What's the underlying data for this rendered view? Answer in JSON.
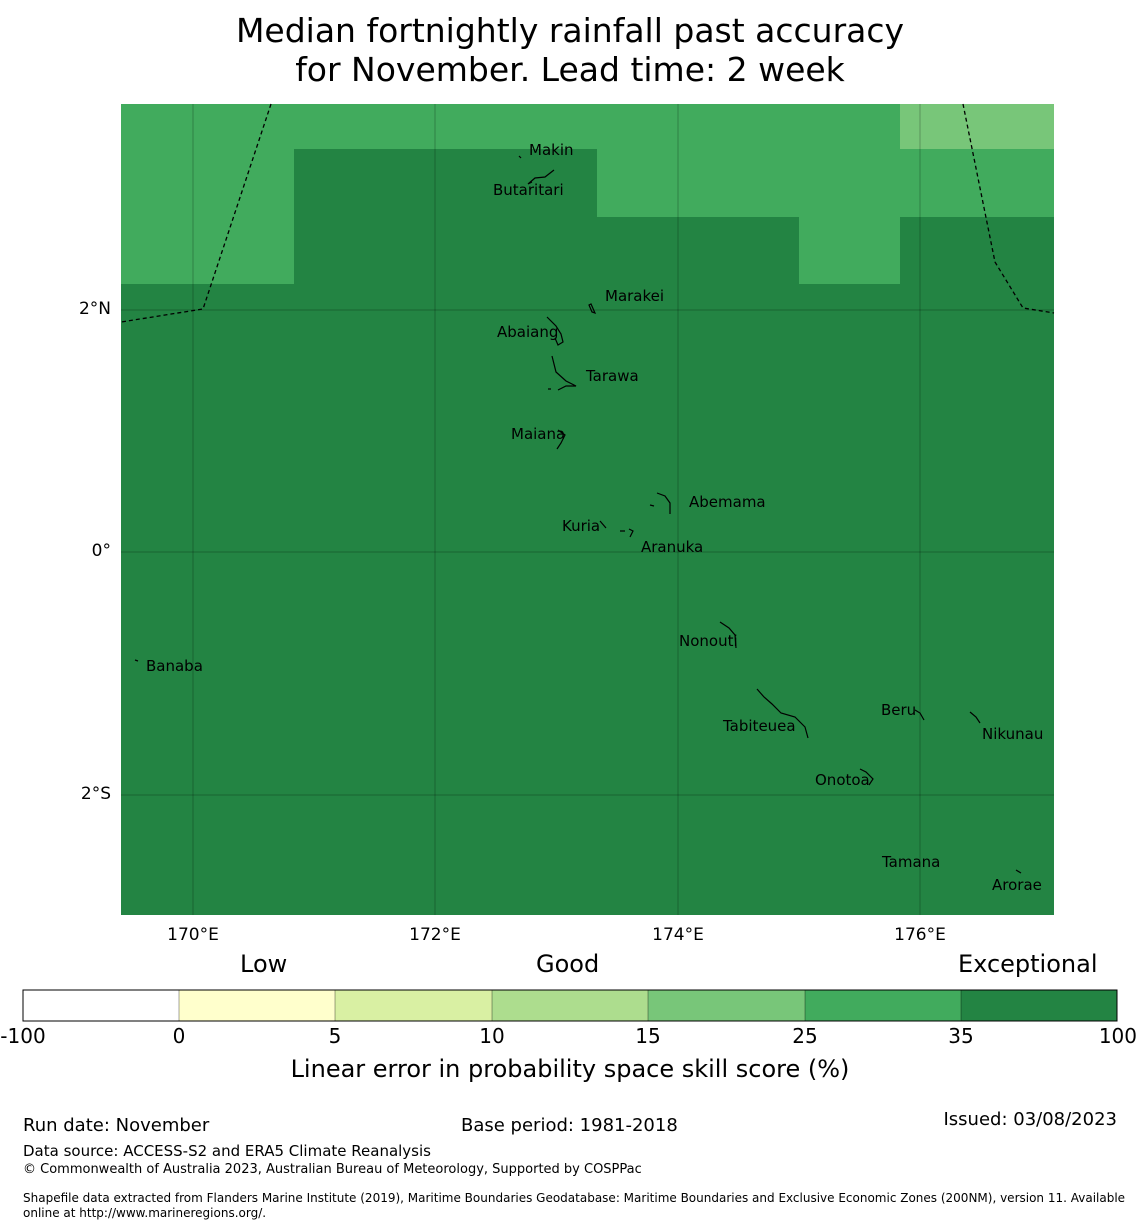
{
  "title": {
    "line1": "Median fortnightly rainfall past accuracy",
    "line2": "for November. Lead time: 2 week"
  },
  "map": {
    "lat_labels": [
      "2°N",
      "0°",
      "2°S"
    ],
    "lon_labels": [
      "170°E",
      "172°E",
      "174°E",
      "176°E"
    ],
    "islands": [
      "Makin",
      "Butaritari",
      "Marakei",
      "Abaiang",
      "Tarawa",
      "Maiana",
      "Abemama",
      "Kuria",
      "Aranuka",
      "Nonouti",
      "Banaba",
      "Tabiteuea",
      "Beru",
      "Nikunau",
      "Onotoa",
      "Tamana",
      "Arorae"
    ]
  },
  "legend": {
    "categories": [
      "Low",
      "Good",
      "Exceptional"
    ],
    "ticks": [
      "-100",
      "0",
      "5",
      "10",
      "15",
      "25",
      "35",
      "100"
    ],
    "colors": [
      "#ffffff",
      "#ffffcc",
      "#d9f0a3",
      "#addd8e",
      "#78c679",
      "#41ab5d",
      "#238443"
    ],
    "title": "Linear error in probability space skill score (%)"
  },
  "footer": {
    "run_date": "Run date: November",
    "base_period": "Base period: 1981-2018",
    "issued": "Issued: 03/08/2023",
    "data_source": "Data source: ACCESS-S2 and ERA5 Climate Reanalysis",
    "copyright": "© Commonwealth of Australia 2023, Australian Bureau of Meteorology, Supported by COSPPac",
    "shapefile_line1": "Shapefile data extracted from Flanders Marine Institute (2019), Maritime Boundaries Geodatabase: Maritime Boundaries and Exclusive Economic Zones (200NM), version 11. Available",
    "shapefile_line2": "online at http://www.marineregions.org/."
  }
}
